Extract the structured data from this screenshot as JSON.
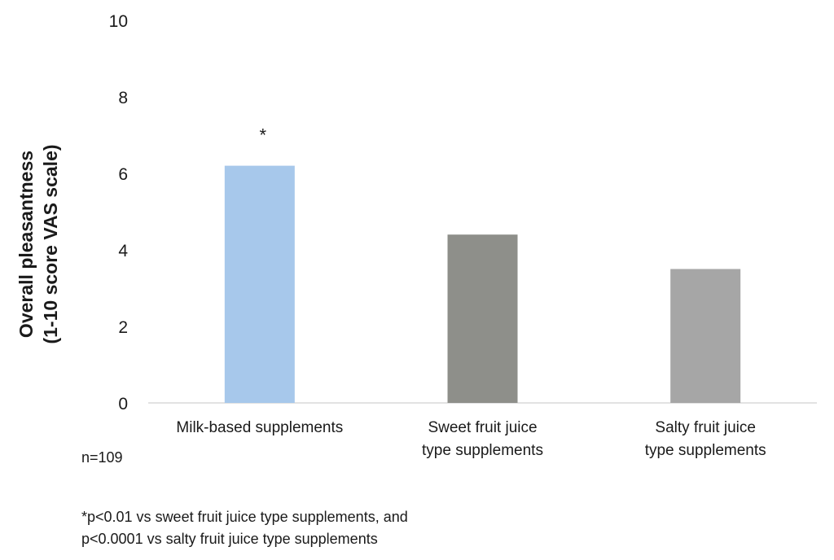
{
  "chart_data": {
    "type": "bar",
    "title": "",
    "ylabel_lines": [
      "Overall pleasantness",
      "(1-10 score VAS scale)"
    ],
    "xlabel": "",
    "ylim": [
      0,
      10
    ],
    "yticks": [
      0,
      2,
      4,
      6,
      8,
      10
    ],
    "categories": [
      [
        "Milk-based supplements"
      ],
      [
        "Sweet fruit juice",
        "type supplements"
      ],
      [
        "Salty fruit juice",
        "type supplements"
      ]
    ],
    "values": [
      6.2,
      4.4,
      3.5
    ],
    "colors": [
      "#a7c8eb",
      "#8e8f8a",
      "#a6a6a6"
    ],
    "annotations": [
      "*",
      "",
      ""
    ],
    "grid": false,
    "legend": "none"
  },
  "notes": {
    "n": "n=109",
    "footnote": "*p<0.01 vs sweet fruit juice type supplements, and\np<0.0001 vs salty fruit juice type supplements"
  }
}
